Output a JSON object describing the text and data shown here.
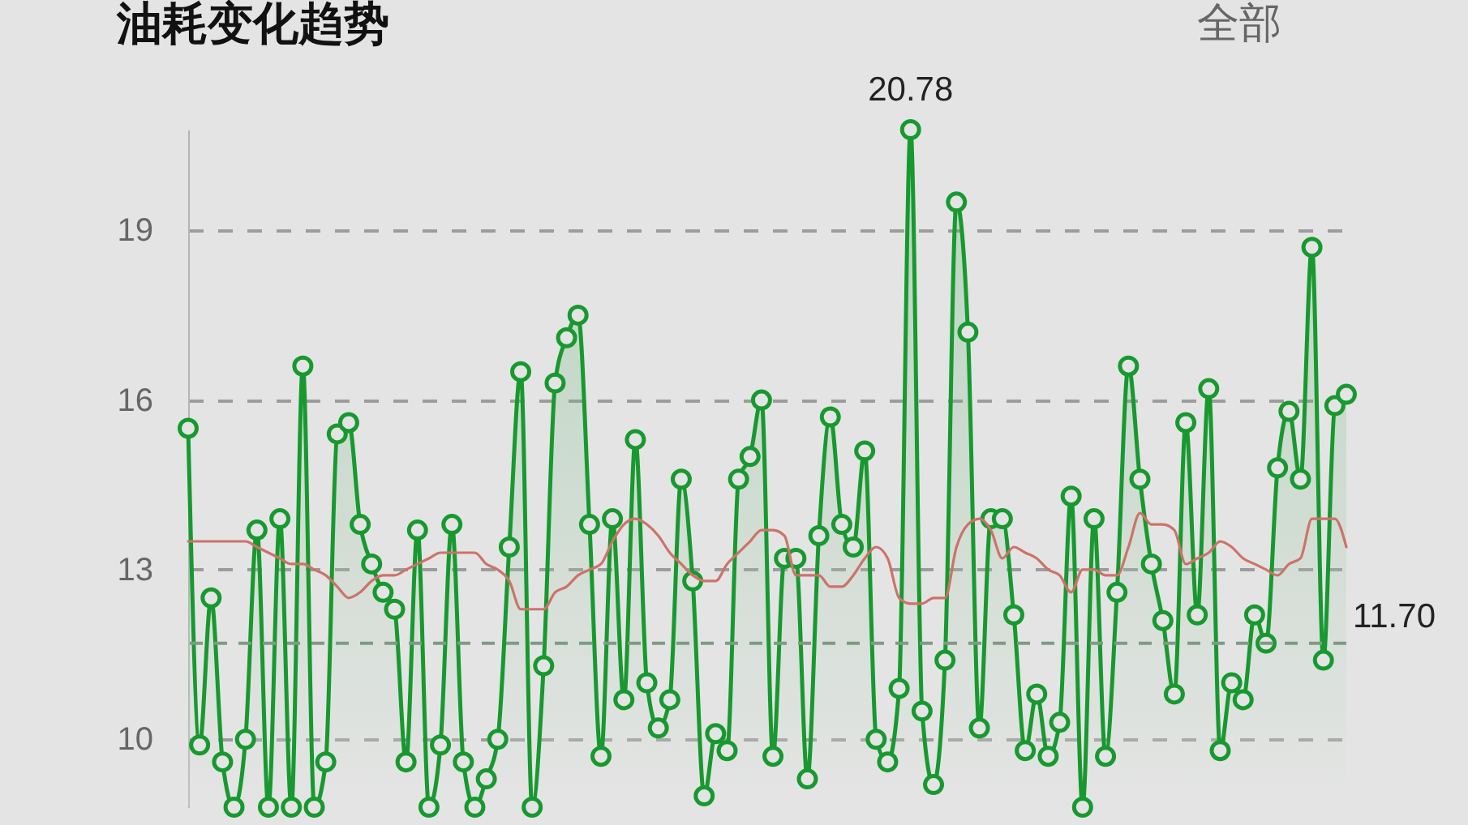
{
  "chart_data": {
    "type": "line",
    "title": "油耗变化趋势",
    "categories": [
      null,
      null,
      null,
      null,
      null,
      null,
      null,
      null,
      null,
      null,
      null,
      null,
      null,
      null,
      null,
      null,
      null,
      null,
      null,
      null,
      null,
      null,
      null,
      null,
      null,
      null,
      null,
      null,
      null,
      null,
      null,
      null,
      null,
      null,
      null,
      null,
      null,
      null,
      null,
      null,
      null,
      null,
      null,
      null,
      null,
      null,
      null,
      null,
      null,
      null,
      null,
      null,
      null,
      null,
      null,
      null,
      null,
      null,
      null,
      null,
      null,
      null,
      null,
      null,
      null,
      null,
      null,
      null,
      null,
      null,
      null,
      null,
      null,
      null,
      null,
      null,
      null,
      null,
      null,
      null,
      null,
      null,
      null,
      null,
      null,
      null,
      null,
      null,
      null,
      null,
      null,
      null,
      null,
      null,
      null,
      null,
      null,
      null,
      null,
      null,
      null,
      null
    ],
    "ylim": [
      8.8,
      20.78
    ],
    "yticks": [
      10,
      13,
      16,
      19
    ],
    "grid": "y",
    "tick_labels": "y",
    "series": [
      {
        "type": "area",
        "color": "#17992f",
        "marker": "circle",
        "values": [
          15.5,
          9.9,
          12.5,
          9.6,
          8.8,
          10.0,
          13.7,
          8.8,
          13.9,
          8.8,
          16.6,
          8.8,
          9.6,
          15.4,
          15.6,
          13.8,
          13.1,
          12.6,
          12.3,
          9.6,
          13.7,
          8.8,
          9.9,
          13.8,
          9.6,
          8.8,
          9.3,
          10.0,
          13.4,
          16.5,
          8.8,
          11.3,
          16.3,
          17.1,
          17.5,
          13.8,
          9.7,
          13.9,
          10.7,
          15.3,
          11.0,
          10.2,
          10.7,
          14.6,
          12.8,
          9.0,
          10.1,
          9.8,
          14.6,
          15.0,
          16.0,
          9.7,
          13.2,
          13.2,
          9.3,
          13.6,
          15.7,
          13.8,
          13.4,
          15.1,
          10.0,
          9.6,
          10.9,
          20.78,
          10.5,
          9.2,
          11.4,
          19.5,
          17.2,
          10.2,
          13.9,
          13.9,
          12.2,
          9.8,
          10.8,
          9.7,
          10.3,
          14.3,
          8.8,
          13.9,
          9.7,
          12.6,
          16.6,
          14.6,
          13.1,
          12.1,
          10.8,
          15.6,
          12.2,
          16.2,
          9.8,
          11.0,
          10.7,
          12.2,
          11.7,
          14.8,
          15.8,
          14.6,
          18.7,
          11.4,
          15.9,
          16.1
        ],
        "value_labels": [
          null,
          null,
          null,
          null,
          null,
          null,
          null,
          null,
          null,
          null,
          null,
          null,
          null,
          null,
          null,
          null,
          null,
          null,
          null,
          null,
          null,
          null,
          null,
          null,
          null,
          null,
          null,
          null,
          null,
          null,
          null,
          null,
          null,
          null,
          null,
          null,
          null,
          null,
          null,
          null,
          null,
          null,
          null,
          null,
          null,
          null,
          null,
          null,
          null,
          null,
          null,
          null,
          null,
          null,
          null,
          null,
          null,
          null,
          null,
          null,
          null,
          null,
          null,
          "20.78",
          null,
          null,
          null,
          null,
          null,
          null,
          null,
          null,
          null,
          null,
          null,
          null,
          null,
          null,
          null,
          null,
          null,
          null,
          null,
          null,
          null,
          null,
          null,
          null,
          null,
          null,
          null,
          null,
          null,
          null,
          null,
          null,
          null,
          null,
          null,
          null,
          null,
          null
        ]
      },
      {
        "color": "#cc7369",
        "values": [
          13.5,
          13.5,
          13.5,
          13.5,
          13.5,
          13.5,
          13.4,
          13.3,
          13.2,
          13.1,
          13.1,
          13.0,
          12.9,
          12.7,
          12.5,
          12.6,
          12.8,
          12.9,
          12.9,
          13.0,
          13.1,
          13.2,
          13.3,
          13.3,
          13.3,
          13.3,
          13.1,
          13.0,
          12.8,
          12.3,
          12.3,
          12.3,
          12.6,
          12.7,
          12.9,
          13.0,
          13.1,
          13.5,
          13.8,
          13.9,
          13.8,
          13.6,
          13.3,
          13.1,
          12.9,
          12.8,
          12.8,
          13.1,
          13.3,
          13.5,
          13.7,
          13.7,
          13.6,
          12.9,
          12.9,
          12.9,
          12.7,
          12.7,
          12.9,
          13.2,
          13.4,
          13.2,
          12.5,
          12.4,
          12.4,
          12.5,
          12.5,
          13.4,
          13.8,
          13.9,
          13.7,
          13.2,
          13.4,
          13.3,
          13.2,
          13.0,
          12.9,
          12.6,
          13.0,
          13.0,
          12.9,
          12.9,
          13.4,
          14.0,
          13.8,
          13.8,
          13.7,
          13.1,
          13.2,
          13.3,
          13.5,
          13.4,
          13.2,
          13.1,
          13.0,
          12.9,
          13.1,
          13.2,
          13.9,
          13.9,
          13.9,
          13.4
        ]
      }
    ],
    "ref_lines": [
      {
        "axis": "y",
        "value": 11.7,
        "label": "11.70",
        "color": "#7f9a86",
        "line_style": "dashed"
      }
    ],
    "annotations": [
      "全部"
    ]
  }
}
